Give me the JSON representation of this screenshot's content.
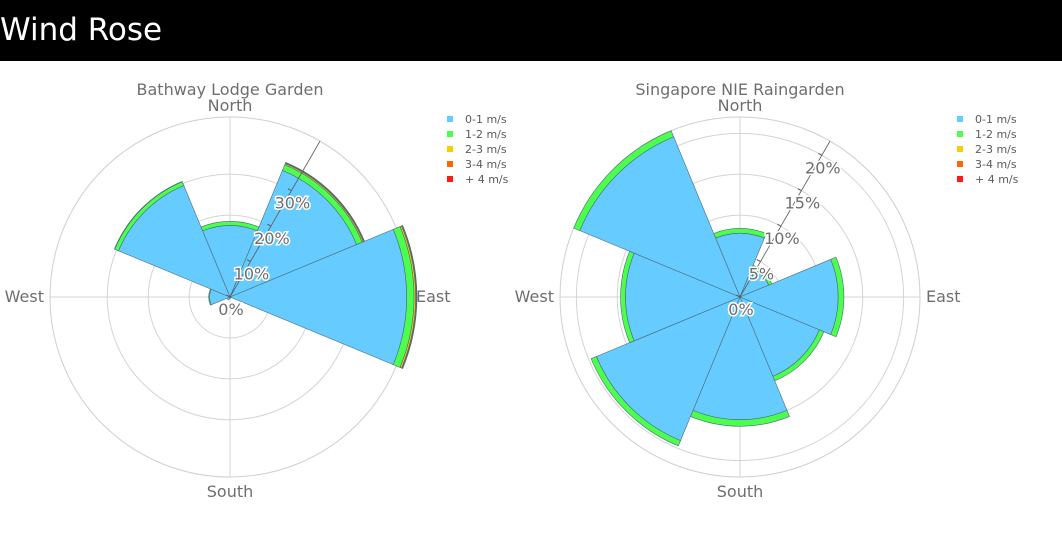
{
  "header": {
    "title": "Wind Rose"
  },
  "chart_data": [
    {
      "type": "barpolar",
      "title": "Bathway Lodge Garden",
      "direction_labels": [
        "North",
        "East",
        "South",
        "West"
      ],
      "radial_ticks": [
        "0%",
        "10%",
        "20%",
        "30%"
      ],
      "radial_range": [
        0,
        44
      ],
      "directions": [
        "N",
        "NE",
        "E",
        "SE",
        "S",
        "SW",
        "W",
        "NW"
      ],
      "series": [
        {
          "name": "0-1 m/s",
          "color": "#66ccff",
          "values": [
            17.5,
            33.5,
            43.2,
            0.3,
            0.3,
            0.8,
            5.0,
            29.5
          ]
        },
        {
          "name": "1-2 m/s",
          "color": "#4dff4d",
          "values": [
            1.0,
            1.5,
            1.8,
            0,
            0,
            0,
            0.2,
            1.0
          ]
        },
        {
          "name": "2-3 m/s",
          "color": "#ffcc00",
          "values": [
            0,
            0.3,
            0.4,
            0,
            0,
            0,
            0,
            0.1
          ]
        },
        {
          "name": "3-4 m/s",
          "color": "#ff6600",
          "values": [
            0,
            0.2,
            0.2,
            0,
            0,
            0,
            0,
            0
          ]
        },
        {
          "name": "+ 4 m/s",
          "color": "#ff1a1a",
          "values": [
            0,
            0.1,
            0.1,
            0,
            0,
            0,
            0,
            0
          ]
        }
      ],
      "legend": "right",
      "grid": true
    },
    {
      "type": "barpolar",
      "title": "Singapore NIE Raingarden",
      "direction_labels": [
        "North",
        "East",
        "South",
        "West"
      ],
      "radial_ticks": [
        "0%",
        "5%",
        "10%",
        "15%",
        "20%"
      ],
      "radial_range": [
        0,
        22
      ],
      "directions": [
        "N",
        "NE",
        "E",
        "SE",
        "S",
        "SW",
        "W",
        "NW"
      ],
      "series": [
        {
          "name": "0-1 m/s",
          "color": "#66ccff",
          "values": [
            7.8,
            3.8,
            12.0,
            10.5,
            15.0,
            19.0,
            14.0,
            21.2
          ]
        },
        {
          "name": "1-2 m/s",
          "color": "#4dff4d",
          "values": [
            0.6,
            0.4,
            0.7,
            0.6,
            0.8,
            0.7,
            0.6,
            0.8
          ]
        },
        {
          "name": "2-3 m/s",
          "color": "#ffcc00",
          "values": [
            0,
            0,
            0,
            0,
            0,
            0,
            0,
            0
          ]
        },
        {
          "name": "3-4 m/s",
          "color": "#ff6600",
          "values": [
            0,
            0,
            0,
            0,
            0,
            0,
            0,
            0
          ]
        },
        {
          "name": "+ 4 m/s",
          "color": "#ff1a1a",
          "values": [
            0,
            0,
            0,
            0,
            0,
            0,
            0,
            0
          ]
        }
      ],
      "legend": "right",
      "grid": true
    }
  ]
}
